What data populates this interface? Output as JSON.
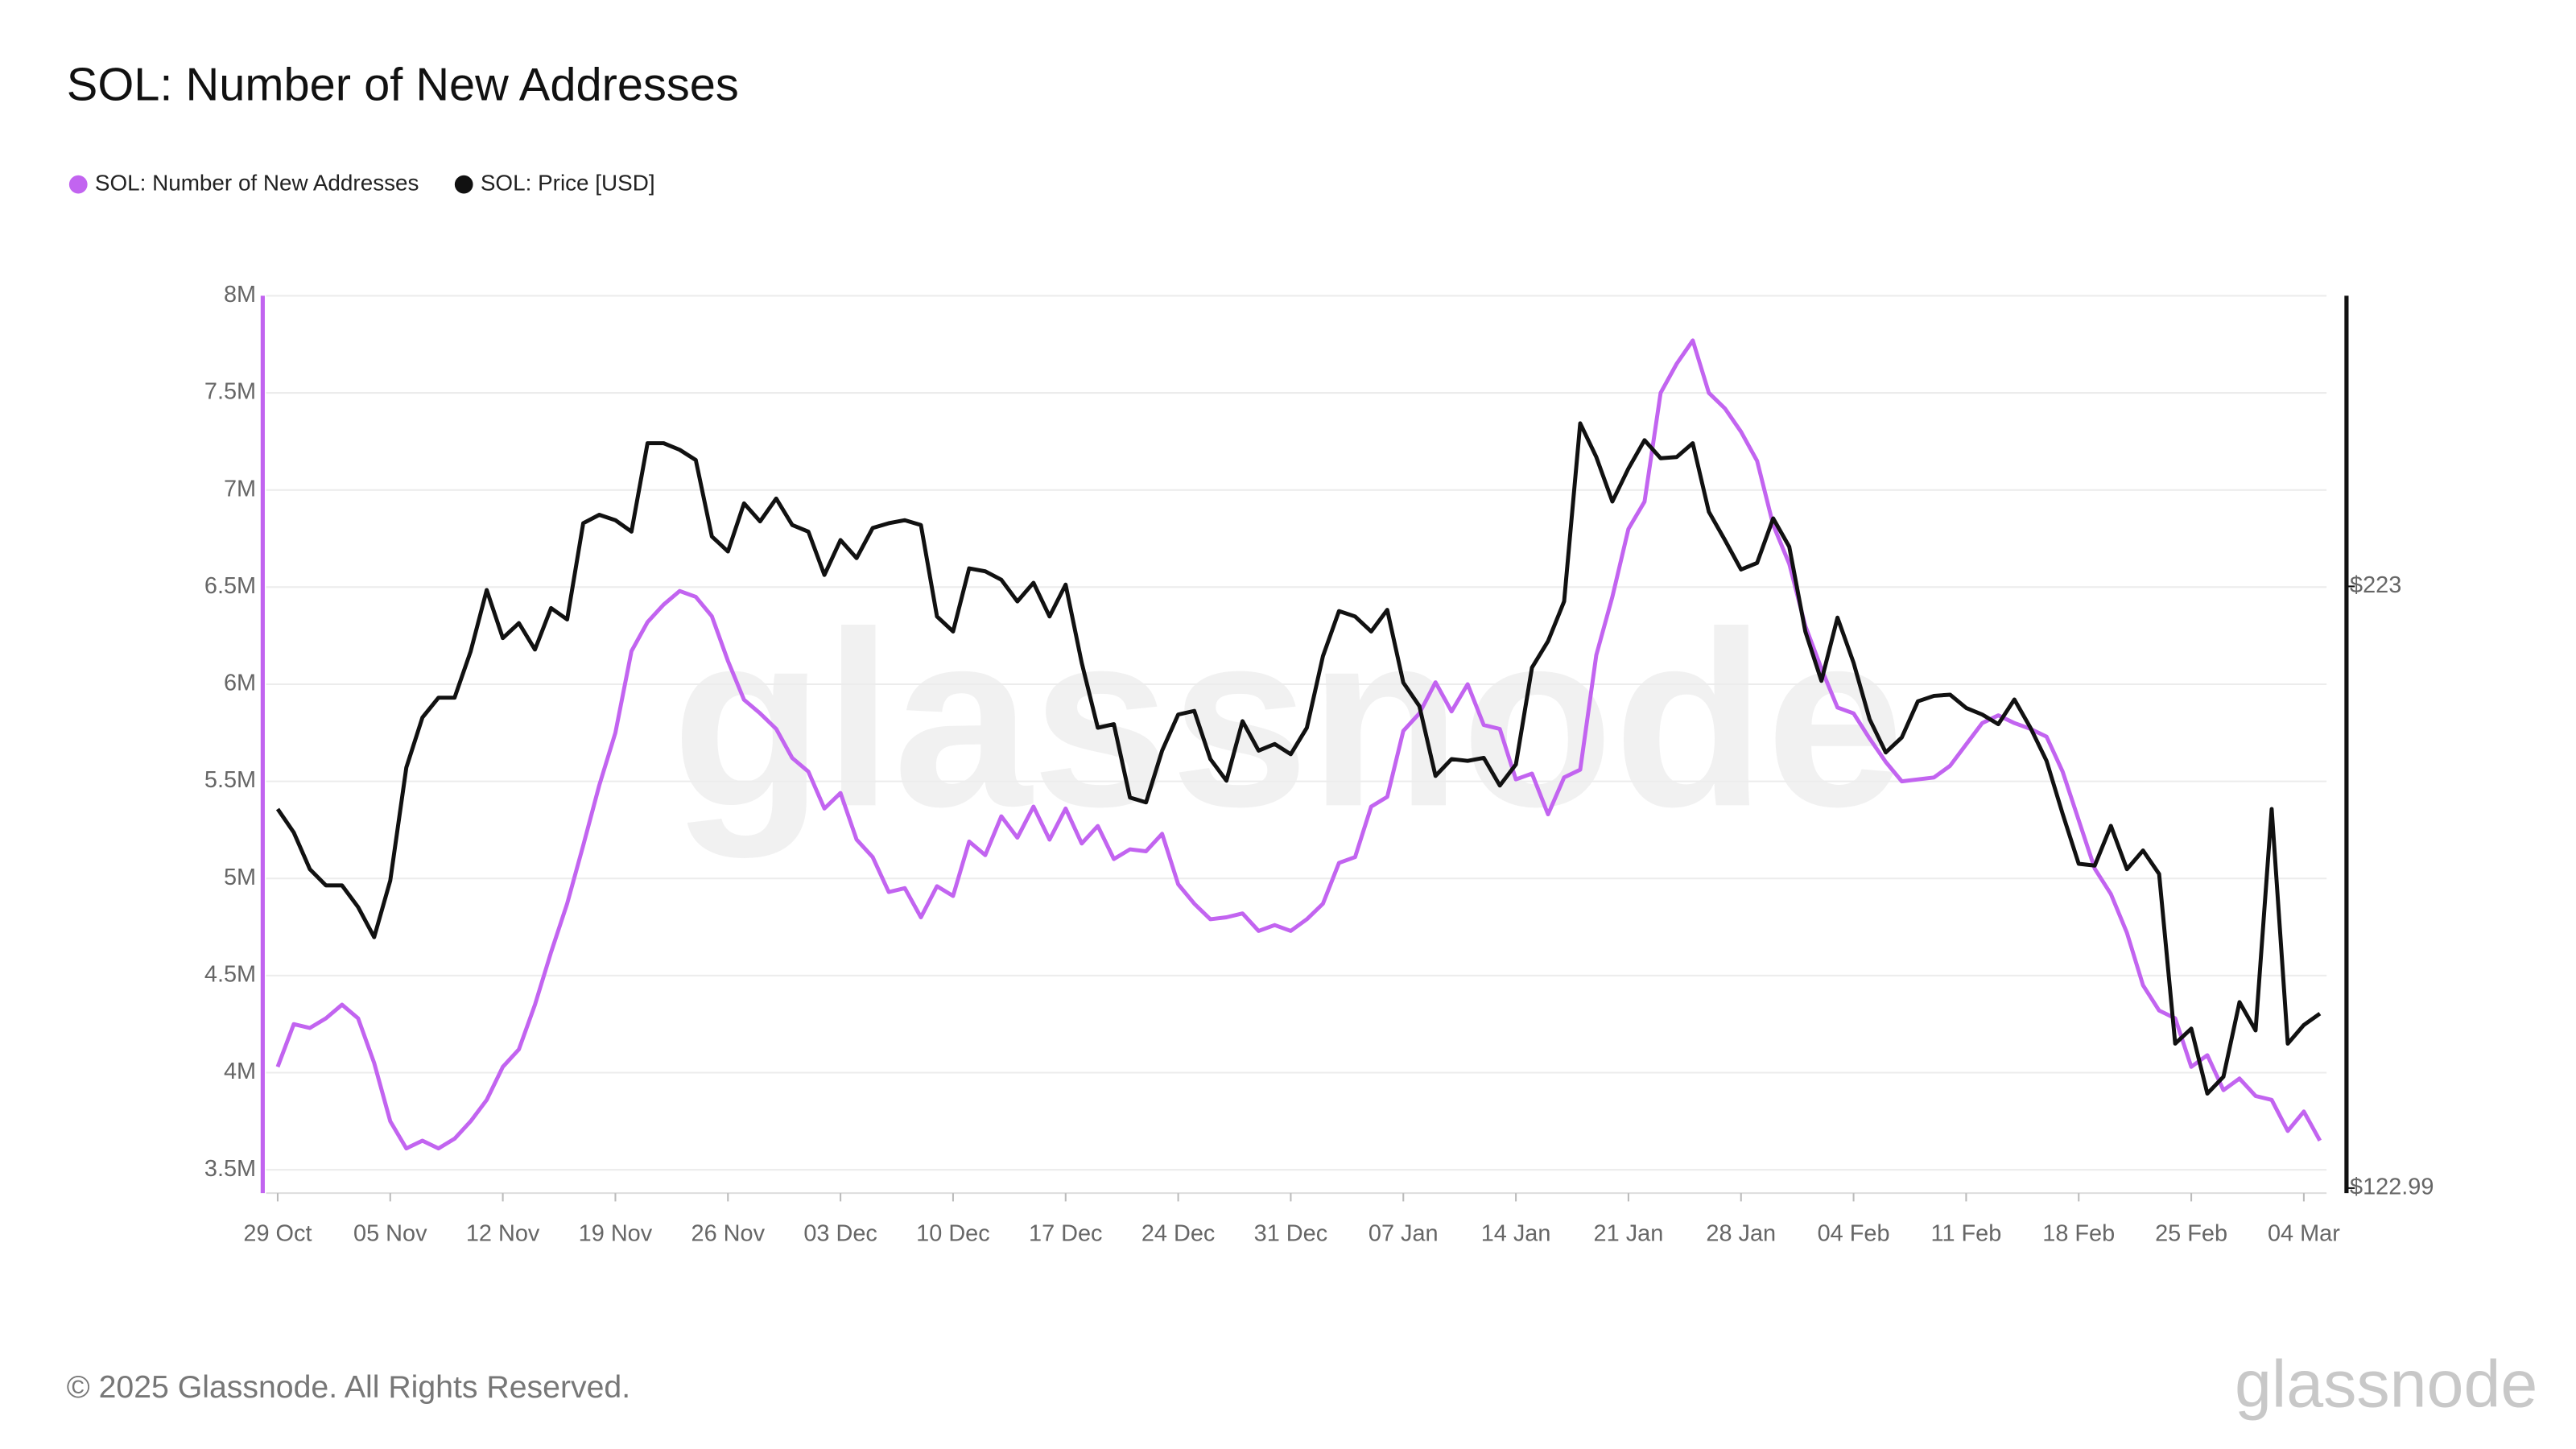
{
  "chart_data": {
    "type": "line",
    "title": "SOL: Number of New Addresses",
    "watermark": "glassnode",
    "footer": "© 2025 Glassnode. All Rights Reserved.",
    "logo": "glassnode",
    "categories": [
      "29 Oct",
      null,
      null,
      null,
      null,
      null,
      null,
      "05 Nov",
      null,
      null,
      null,
      null,
      null,
      null,
      "12 Nov",
      null,
      null,
      null,
      null,
      null,
      null,
      "19 Nov",
      null,
      null,
      null,
      null,
      null,
      null,
      "26 Nov",
      null,
      null,
      null,
      null,
      null,
      null,
      "03 Dec",
      null,
      null,
      null,
      null,
      null,
      null,
      "10 Dec",
      null,
      null,
      null,
      null,
      null,
      null,
      "17 Dec",
      null,
      null,
      null,
      null,
      null,
      null,
      "24 Dec",
      null,
      null,
      null,
      null,
      null,
      null,
      "31 Dec",
      null,
      null,
      null,
      null,
      null,
      null,
      "07 Jan",
      null,
      null,
      null,
      null,
      null,
      null,
      "14 Jan",
      null,
      null,
      null,
      null,
      null,
      null,
      "21 Jan",
      null,
      null,
      null,
      null,
      null,
      null,
      "28 Jan",
      null,
      null,
      null,
      null,
      null,
      null,
      "04 Feb",
      null,
      null,
      null,
      null,
      null,
      null,
      "11 Feb",
      null,
      null,
      null,
      null,
      null,
      null,
      "18 Feb",
      null,
      null,
      null,
      null,
      null,
      null,
      "25 Feb",
      null,
      null,
      null,
      null,
      null,
      null,
      "04 Mar",
      null
    ],
    "series": [
      {
        "name": "SOL: Number of New Addresses",
        "color": "#c264f0",
        "axis": "y",
        "values": [
          4030000,
          4250000,
          4230000,
          4280000,
          4350000,
          4280000,
          4050000,
          3750000,
          3610000,
          3650000,
          3610000,
          3660000,
          3750000,
          3860000,
          4030000,
          4120000,
          4350000,
          4620000,
          4870000,
          5170000,
          5480000,
          5750000,
          6170000,
          6320000,
          6410000,
          6480000,
          6450000,
          6350000,
          6120000,
          5920000,
          5850000,
          5770000,
          5620000,
          5550000,
          5360000,
          5440000,
          5200000,
          5110000,
          4930000,
          4950000,
          4800000,
          4960000,
          4910000,
          5190000,
          5120000,
          5320000,
          5210000,
          5370000,
          5200000,
          5360000,
          5180000,
          5270000,
          5100000,
          5150000,
          5140000,
          5230000,
          4970000,
          4870000,
          4790000,
          4800000,
          4820000,
          4730000,
          4760000,
          4730000,
          4790000,
          4870000,
          5080000,
          5110000,
          5370000,
          5420000,
          5760000,
          5850000,
          6010000,
          5860000,
          6000000,
          5790000,
          5770000,
          5510000,
          5540000,
          5330000,
          5520000,
          5560000,
          6150000,
          6450000,
          6800000,
          6940000,
          7500000,
          7650000,
          7770000,
          7500000,
          7420000,
          7300000,
          7150000,
          6820000,
          6620000,
          6300000,
          6080000,
          5880000,
          5850000,
          5720000,
          5600000,
          5500000,
          5510000,
          5520000,
          5580000,
          5690000,
          5800000,
          5840000,
          5800000,
          5770000,
          5730000,
          5550000,
          5300000,
          5050000,
          4920000,
          4720000,
          4450000,
          4320000,
          4280000,
          4030000,
          4090000,
          3910000,
          3970000,
          3880000,
          3860000,
          3700000,
          3800000,
          3650000
        ]
      },
      {
        "name": "SOL: Price [USD]",
        "color": "#111111",
        "axis": "y2",
        "values": [
          186.0,
          182.1,
          176.0,
          173.3,
          173.3,
          169.7,
          164.7,
          174.1,
          192.9,
          201.2,
          204.5,
          204.5,
          212.2,
          222.4,
          214.4,
          216.9,
          212.5,
          219.4,
          217.5,
          233.5,
          234.9,
          234.0,
          232.1,
          246.8,
          246.8,
          245.7,
          244.0,
          231.3,
          228.8,
          236.8,
          233.8,
          237.6,
          233.2,
          232.1,
          224.9,
          230.7,
          227.7,
          232.7,
          233.5,
          234.0,
          233.2,
          218.0,
          215.5,
          226.0,
          225.5,
          224.1,
          220.5,
          223.6,
          218.0,
          223.3,
          210.3,
          199.5,
          200.1,
          187.9,
          187.1,
          195.7,
          201.7,
          202.3,
          194.3,
          190.7,
          200.6,
          195.7,
          196.8,
          195.1,
          199.5,
          211.4,
          218.9,
          218.0,
          215.5,
          219.1,
          207.0,
          203.1,
          191.5,
          194.3,
          194.0,
          194.5,
          189.9,
          193.4,
          209.5,
          213.9,
          220.5,
          250.1,
          244.5,
          237.1,
          242.6,
          247.3,
          244.3,
          244.5,
          246.8,
          235.4,
          230.7,
          225.8,
          226.9,
          234.3,
          229.6,
          215.5,
          207.3,
          217.8,
          210.3,
          200.9,
          195.4,
          197.9,
          203.9,
          204.8,
          205.0,
          202.8,
          201.7,
          200.1,
          204.2,
          199.5,
          194.0,
          185.2,
          176.9,
          176.6,
          183.2,
          176.0,
          179.1,
          175.2,
          147.0,
          149.5,
          138.7,
          141.5,
          153.9,
          149.2,
          186.0,
          147.0,
          150.1,
          152.0
        ]
      }
    ],
    "ylim": [
      3380000,
      8000000
    ],
    "yticks": [
      {
        "value": 3500000,
        "label": "3.5M"
      },
      {
        "value": 4000000,
        "label": "4M"
      },
      {
        "value": 4500000,
        "label": "4.5M"
      },
      {
        "value": 5000000,
        "label": "5M"
      },
      {
        "value": 5500000,
        "label": "5.5M"
      },
      {
        "value": 6000000,
        "label": "6M"
      },
      {
        "value": 6500000,
        "label": "6.5M"
      },
      {
        "value": 7000000,
        "label": "7M"
      },
      {
        "value": 7500000,
        "label": "7.5M"
      },
      {
        "value": 8000000,
        "label": "8M"
      }
    ],
    "y2lim": [
      122.16,
      271.3
    ],
    "y2ticks": [
      {
        "value": 122.99,
        "label": "$122.99"
      },
      {
        "value": 223,
        "label": "$223"
      }
    ],
    "grid": true,
    "legend": "top-left"
  }
}
